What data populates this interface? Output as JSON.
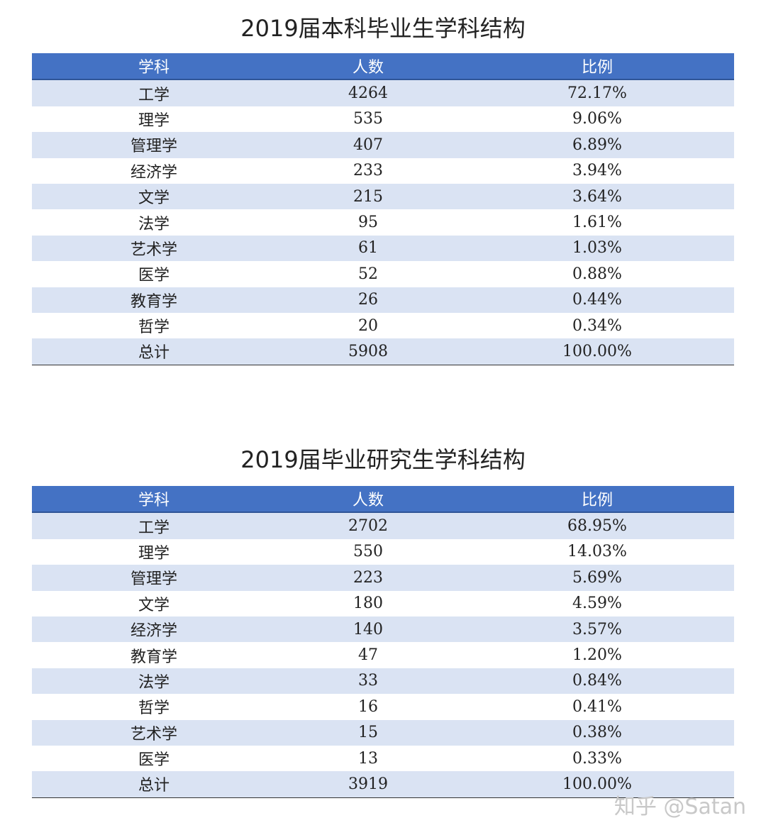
{
  "tables": [
    {
      "title": "2019届本科毕业生学科结构",
      "header": [
        "学科",
        "人数",
        "比例"
      ],
      "rows": [
        [
          "工学",
          "4264",
          "72.17%"
        ],
        [
          "理学",
          "535",
          "9.06%"
        ],
        [
          "管理学",
          "407",
          "6.89%"
        ],
        [
          "经济学",
          "233",
          "3.94%"
        ],
        [
          "文学",
          "215",
          "3.64%"
        ],
        [
          "法学",
          "95",
          "1.61%"
        ],
        [
          "艺术学",
          "61",
          "1.03%"
        ],
        [
          "医学",
          "52",
          "0.88%"
        ],
        [
          "教育学",
          "26",
          "0.44%"
        ],
        [
          "哲学",
          "20",
          "0.34%"
        ],
        [
          "总计",
          "5908",
          "100.00%"
        ]
      ]
    },
    {
      "title": "2019届毕业研究生学科结构",
      "header": [
        "学科",
        "人数",
        "比例"
      ],
      "rows": [
        [
          "工学",
          "2702",
          "68.95%"
        ],
        [
          "理学",
          "550",
          "14.03%"
        ],
        [
          "管理学",
          "223",
          "5.69%"
        ],
        [
          "文学",
          "180",
          "4.59%"
        ],
        [
          "经济学",
          "140",
          "3.57%"
        ],
        [
          "教育学",
          "47",
          "1.20%"
        ],
        [
          "法学",
          "33",
          "0.84%"
        ],
        [
          "哲学",
          "16",
          "0.41%"
        ],
        [
          "艺术学",
          "15",
          "0.38%"
        ],
        [
          "医学",
          "13",
          "0.33%"
        ],
        [
          "总计",
          "3919",
          "100.00%"
        ]
      ]
    }
  ],
  "watermark": "知乎 @Satan"
}
